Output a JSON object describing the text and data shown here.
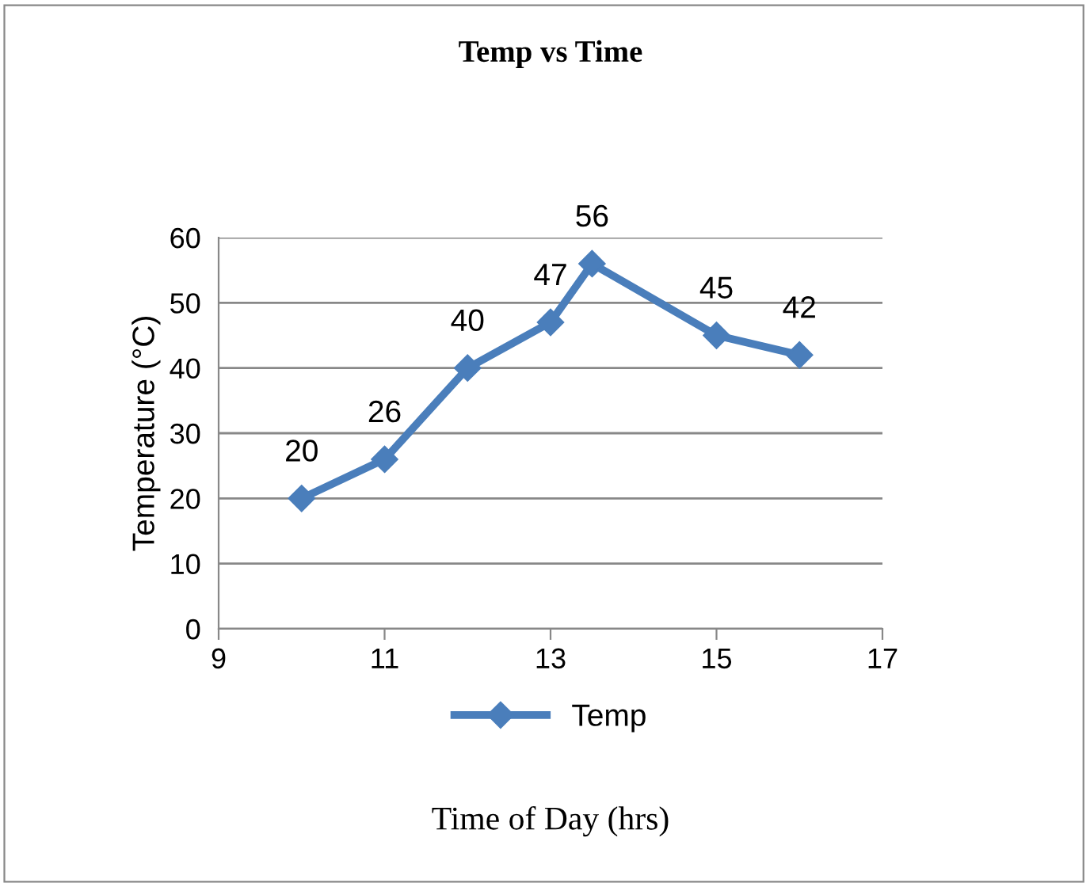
{
  "chart_data": {
    "type": "line",
    "title": "Temp vs Time",
    "xlabel": "Time of Day (hrs)",
    "ylabel": "Temperature (°C)",
    "series": [
      {
        "name": "Temp",
        "color": "#4a7ebb",
        "x": [
          10,
          11,
          12,
          13,
          13.5,
          15,
          16
        ],
        "values": [
          20,
          26,
          40,
          47,
          56,
          45,
          42
        ]
      }
    ],
    "xlim": [
      9,
      17
    ],
    "xticks": [
      9,
      11,
      13,
      15,
      17
    ],
    "ylim": [
      0,
      60
    ],
    "yticks": [
      0,
      10,
      20,
      30,
      40,
      50,
      60
    ],
    "grid": "y",
    "legend": "bottom",
    "marker": "diamond",
    "line_style": "solid",
    "data_labels": true
  }
}
